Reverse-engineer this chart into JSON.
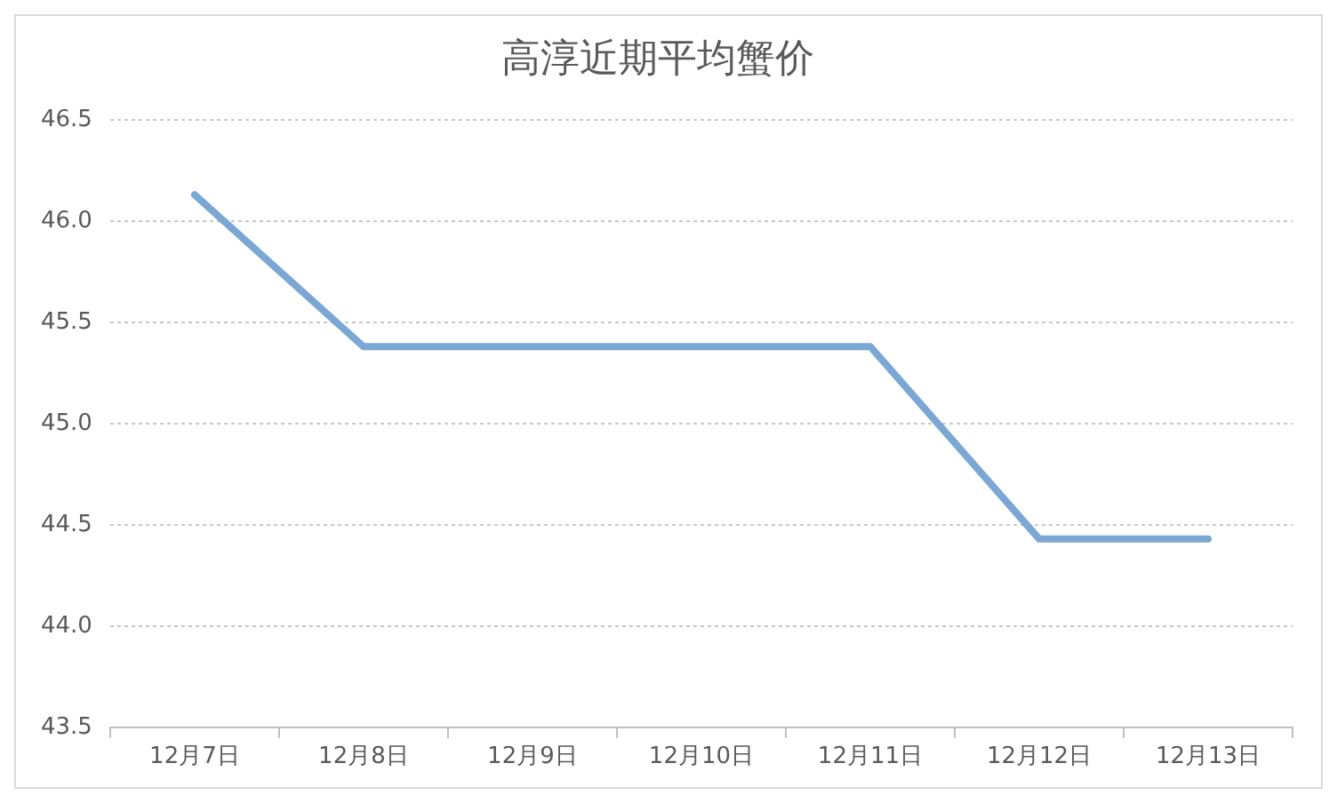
{
  "chart_data": {
    "type": "line",
    "title": "高淳近期平均蟹价",
    "categories": [
      "12月7日",
      "12月8日",
      "12月9日",
      "12月10日",
      "12月11日",
      "12月12日",
      "12月13日"
    ],
    "series": [
      {
        "color": "#7ba7d4",
        "values": [
          46.13,
          45.38,
          45.38,
          45.38,
          45.38,
          44.43,
          44.43
        ]
      }
    ],
    "ylim": [
      43.5,
      46.5
    ],
    "yticks": [
      43.5,
      {
        "value": 44,
        "label": "44.0"
      },
      44.5,
      {
        "value": 45,
        "label": "45.0"
      },
      45.5,
      {
        "value": 46,
        "label": "46.0"
      },
      46.5
    ],
    "grid": "y",
    "legend": false,
    "marker": "none",
    "line_style": "solid"
  }
}
